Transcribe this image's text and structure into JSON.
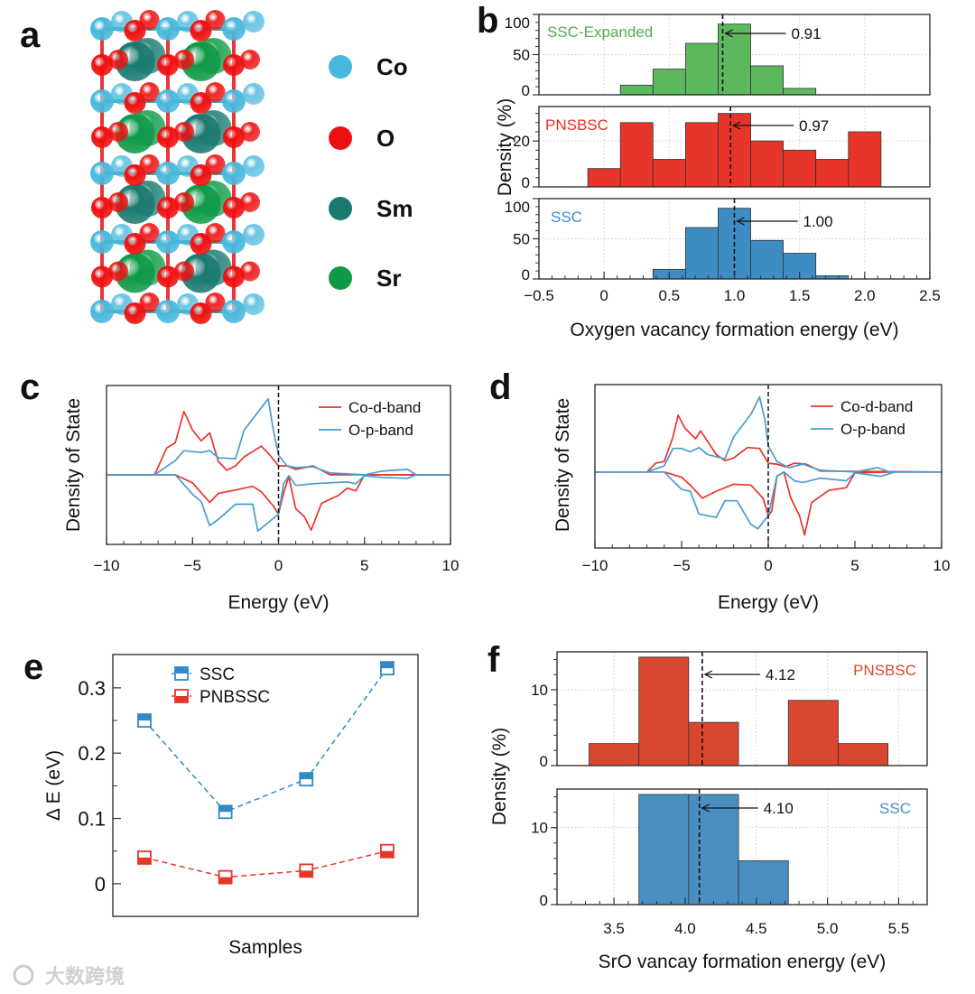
{
  "panel_labels": [
    "a",
    "b",
    "c",
    "d",
    "e",
    "f"
  ],
  "structure": {
    "legend": [
      {
        "label": "Co",
        "color": "#48b8dc"
      },
      {
        "label": "O",
        "color": "#ee1010"
      },
      {
        "label": "Sm",
        "color": "#1a7a70"
      },
      {
        "label": "Sr",
        "color": "#0f9a48"
      }
    ]
  },
  "watermark": "大数跨境",
  "chart_data": [
    {
      "panel": "b",
      "type": "bar",
      "xlabel": "Oxygen vacancy formation energy (eV)",
      "ylabel": "Density (%)",
      "xlim": [
        -0.5,
        2.5
      ],
      "xticks": [
        -0.5,
        0,
        0.5,
        1,
        1.5,
        2,
        2.5
      ],
      "xtick_labels": [
        "−0.5",
        "0",
        "0.5",
        "1.0",
        "1.5",
        "2.0",
        "2.5"
      ],
      "bin_width": 0.25,
      "grid": true,
      "series": [
        {
          "name": "SSC-Expanded",
          "color": "#5cb85c",
          "label_color": "#4caf50",
          "ylim": [
            0,
            100
          ],
          "yticks": [
            0,
            50,
            100
          ],
          "ytick_labels": [
            "0",
            "50",
            "100"
          ],
          "bin_starts": [
            0.125,
            0.375,
            0.625,
            0.875,
            1.125,
            1.375
          ],
          "values": [
            12,
            32,
            64,
            88,
            36,
            8
          ],
          "mean": 0.91,
          "mean_label": "0.91"
        },
        {
          "name": "PNSBSC",
          "color": "#e8352a",
          "label_color": "#e53124",
          "ylim": [
            0,
            35
          ],
          "yticks": [
            0,
            20
          ],
          "ytick_labels": [
            "0",
            "20"
          ],
          "bin_starts": [
            -0.125,
            0.125,
            0.375,
            0.625,
            0.875,
            1.125,
            1.375,
            1.625,
            1.875
          ],
          "values": [
            8,
            28,
            12,
            28,
            32,
            20,
            16,
            12,
            24
          ],
          "mean": 0.97,
          "mean_label": "0.97"
        },
        {
          "name": "SSC",
          "color": "#3d8cc4",
          "label_color": "#3e8dc5",
          "ylim": [
            0,
            100
          ],
          "yticks": [
            0,
            50,
            100
          ],
          "ytick_labels": [
            "0",
            "50",
            "100"
          ],
          "bin_starts": [
            0.375,
            0.625,
            0.875,
            1.125,
            1.375,
            1.625
          ],
          "values": [
            12,
            64,
            88,
            48,
            32,
            4
          ],
          "mean": 1.0,
          "mean_label": "1.00"
        }
      ]
    },
    {
      "panel": "c",
      "type": "line",
      "xlabel": "Energy (eV)",
      "ylabel": "Density of State",
      "xlim": [
        -10,
        10
      ],
      "ylim": [
        -0.78,
        1.0
      ],
      "xticks": [
        -10,
        -5,
        0,
        5,
        10
      ],
      "xtick_labels": [
        "−10",
        "−5",
        "0",
        "5",
        "10"
      ],
      "legend": "top-right",
      "fermi_level": 0,
      "series": [
        {
          "name": "Co-d-band",
          "color": "#e8352a",
          "up": [
            [
              -10,
              0
            ],
            [
              -7.2,
              0
            ],
            [
              -6.5,
              0.3
            ],
            [
              -6,
              0.36
            ],
            [
              -5.5,
              0.71
            ],
            [
              -5,
              0.5
            ],
            [
              -4.5,
              0.38
            ],
            [
              -4,
              0.47
            ],
            [
              -3.5,
              0.15
            ],
            [
              -3,
              0.05
            ],
            [
              -2.5,
              0.1
            ],
            [
              -2,
              0.2
            ],
            [
              -1,
              0.32
            ],
            [
              -0.5,
              0.22
            ],
            [
              0,
              0.1
            ],
            [
              0.5,
              0.1
            ],
            [
              1,
              0.06
            ],
            [
              1.5,
              0.08
            ],
            [
              2,
              0.1
            ],
            [
              3,
              0
            ],
            [
              10,
              0
            ]
          ],
          "down": [
            [
              -10,
              0
            ],
            [
              -6,
              0
            ],
            [
              -5,
              -0.09
            ],
            [
              -4.5,
              -0.2
            ],
            [
              -4,
              -0.31
            ],
            [
              -3.5,
              -0.21
            ],
            [
              -2.5,
              -0.17
            ],
            [
              -1.5,
              -0.13
            ],
            [
              -1,
              -0.19
            ],
            [
              -0.3,
              -0.35
            ],
            [
              0,
              -0.44
            ],
            [
              0.3,
              -0.2
            ],
            [
              0.6,
              -0.02
            ],
            [
              1,
              -0.38
            ],
            [
              1.5,
              -0.47
            ],
            [
              1.9,
              -0.62
            ],
            [
              2.5,
              -0.32
            ],
            [
              3.5,
              -0.23
            ],
            [
              4,
              -0.15
            ],
            [
              4.5,
              -0.18
            ],
            [
              5,
              0
            ],
            [
              10,
              0
            ]
          ]
        },
        {
          "name": "O-p-band",
          "color": "#4a9bd0",
          "up": [
            [
              -10,
              0
            ],
            [
              -7.2,
              0
            ],
            [
              -6,
              0.16
            ],
            [
              -5.5,
              0.27
            ],
            [
              -4.5,
              0.25
            ],
            [
              -4,
              0.27
            ],
            [
              -3.5,
              0.19
            ],
            [
              -2.5,
              0.18
            ],
            [
              -2,
              0.5
            ],
            [
              -1,
              0.75
            ],
            [
              -0.6,
              0.85
            ],
            [
              -0.3,
              0.5
            ],
            [
              0,
              0.22
            ],
            [
              0.5,
              0.1
            ],
            [
              1,
              0.08
            ],
            [
              2,
              0.09
            ],
            [
              3,
              0.02
            ],
            [
              5,
              0
            ],
            [
              6,
              0.04
            ],
            [
              7.5,
              0.06
            ],
            [
              8,
              0
            ],
            [
              10,
              0
            ]
          ],
          "down": [
            [
              -10,
              0
            ],
            [
              -6,
              0
            ],
            [
              -5,
              -0.22
            ],
            [
              -4.5,
              -0.3
            ],
            [
              -4,
              -0.57
            ],
            [
              -3.5,
              -0.5
            ],
            [
              -2.5,
              -0.33
            ],
            [
              -1.5,
              -0.33
            ],
            [
              -1.2,
              -0.63
            ],
            [
              -0.5,
              -0.52
            ],
            [
              0,
              -0.44
            ],
            [
              0.3,
              -0.1
            ],
            [
              0.6,
              -0.01
            ],
            [
              1,
              -0.12
            ],
            [
              2,
              -0.1
            ],
            [
              4,
              -0.08
            ],
            [
              4.5,
              -0.1
            ],
            [
              5,
              -0.01
            ],
            [
              6,
              -0.03
            ],
            [
              7.5,
              -0.04
            ],
            [
              8,
              0
            ],
            [
              10,
              0
            ]
          ]
        }
      ]
    },
    {
      "panel": "d",
      "type": "line",
      "xlabel": "Energy (eV)",
      "ylabel": "Density of State",
      "xlim": [
        -10,
        10
      ],
      "ylim": [
        -0.87,
        1.0
      ],
      "xticks": [
        -10,
        -5,
        0,
        5,
        10
      ],
      "xtick_labels": [
        "−10",
        "−5",
        "0",
        "5",
        "10"
      ],
      "legend": "top-right",
      "fermi_level": 0,
      "series": [
        {
          "name": "Co-d-band",
          "color": "#e8352a",
          "up": [
            [
              -10,
              0
            ],
            [
              -7,
              0
            ],
            [
              -6.5,
              0.1
            ],
            [
              -6,
              0.12
            ],
            [
              -5.5,
              0.4
            ],
            [
              -5.2,
              0.65
            ],
            [
              -4.8,
              0.5
            ],
            [
              -4.2,
              0.38
            ],
            [
              -3.9,
              0.47
            ],
            [
              -3.5,
              0.35
            ],
            [
              -3,
              0.2
            ],
            [
              -2.5,
              0.13
            ],
            [
              -2,
              0.16
            ],
            [
              -1.2,
              0.28
            ],
            [
              -0.5,
              0.27
            ],
            [
              0,
              0.1
            ],
            [
              0.5,
              0.09
            ],
            [
              1,
              0.06
            ],
            [
              1.5,
              0.1
            ],
            [
              2.2,
              0.09
            ],
            [
              3,
              0.01
            ],
            [
              10,
              0
            ]
          ],
          "down": [
            [
              -10,
              0
            ],
            [
              -6,
              0
            ],
            [
              -5,
              -0.06
            ],
            [
              -4.5,
              -0.15
            ],
            [
              -3.8,
              -0.3
            ],
            [
              -3,
              -0.22
            ],
            [
              -2,
              -0.14
            ],
            [
              -1,
              -0.15
            ],
            [
              -0.3,
              -0.3
            ],
            [
              0,
              -0.5
            ],
            [
              0.2,
              -0.45
            ],
            [
              0.5,
              -0.05
            ],
            [
              0.9,
              0
            ],
            [
              1.3,
              -0.3
            ],
            [
              1.8,
              -0.5
            ],
            [
              2.1,
              -0.72
            ],
            [
              2.5,
              -0.35
            ],
            [
              3.5,
              -0.21
            ],
            [
              4.5,
              -0.18
            ],
            [
              5,
              -0.01
            ],
            [
              7.2,
              0
            ],
            [
              10,
              0
            ]
          ]
        },
        {
          "name": "O-p-band",
          "color": "#4a9bd0",
          "up": [
            [
              -10,
              0
            ],
            [
              -7,
              0
            ],
            [
              -6,
              0.07
            ],
            [
              -5.5,
              0.27
            ],
            [
              -5,
              0.27
            ],
            [
              -4.5,
              0.23
            ],
            [
              -4,
              0.28
            ],
            [
              -3.5,
              0.2
            ],
            [
              -2.5,
              0.15
            ],
            [
              -2,
              0.4
            ],
            [
              -1,
              0.66
            ],
            [
              -0.5,
              0.86
            ],
            [
              -0.2,
              0.6
            ],
            [
              0,
              0.3
            ],
            [
              0.5,
              0.12
            ],
            [
              1.2,
              0.05
            ],
            [
              2,
              0.09
            ],
            [
              3,
              0.02
            ],
            [
              5,
              0
            ],
            [
              6.3,
              0.05
            ],
            [
              7,
              0
            ],
            [
              10,
              0
            ]
          ],
          "down": [
            [
              -10,
              0
            ],
            [
              -6,
              0
            ],
            [
              -5,
              -0.2
            ],
            [
              -4.5,
              -0.22
            ],
            [
              -4,
              -0.48
            ],
            [
              -3,
              -0.52
            ],
            [
              -2.5,
              -0.33
            ],
            [
              -1.8,
              -0.33
            ],
            [
              -1,
              -0.6
            ],
            [
              -0.6,
              -0.65
            ],
            [
              0,
              -0.5
            ],
            [
              0.5,
              -0.05
            ],
            [
              0.9,
              0
            ],
            [
              1.5,
              -0.1
            ],
            [
              2,
              -0.12
            ],
            [
              3,
              -0.07
            ],
            [
              4.5,
              -0.1
            ],
            [
              5,
              -0.01
            ],
            [
              6.5,
              -0.05
            ],
            [
              7.3,
              0
            ],
            [
              10,
              0
            ]
          ]
        }
      ]
    },
    {
      "panel": "e",
      "type": "line",
      "xlabel": "Samples",
      "ylabel": "Δ E (eV)",
      "xlim": [
        0.61,
        4.38
      ],
      "ylim": [
        -0.05,
        0.351
      ],
      "yticks": [
        0,
        0.1,
        0.2,
        0.3
      ],
      "ytick_labels": [
        "0",
        "0.1",
        "0.2",
        "0.3"
      ],
      "legend": "top-left",
      "x": [
        1,
        2,
        3,
        4
      ],
      "series": [
        {
          "name": "SSC",
          "color": "#2f8ac6",
          "values": [
            0.25,
            0.11,
            0.16,
            0.33
          ],
          "fill": "top"
        },
        {
          "name": "PNBSSC",
          "color": "#e8352a",
          "values": [
            0.04,
            0.01,
            0.02,
            0.05
          ],
          "fill": "bottom"
        }
      ]
    },
    {
      "panel": "f",
      "type": "bar",
      "xlabel": "SrO vancay formation energy (eV)",
      "ylabel": "Density (%)",
      "xlim": [
        3.1,
        5.7
      ],
      "xticks": [
        3.5,
        4.0,
        4.5,
        5.0,
        5.5
      ],
      "xtick_labels": [
        "3.5",
        "4.0",
        "4.5",
        "5.0",
        "5.5"
      ],
      "bin_width": 0.35,
      "grid": true,
      "series": [
        {
          "name": "PNSBSC",
          "color": "#d9472f",
          "label_color": "#d9472f",
          "ylim": [
            0,
            15
          ],
          "yticks": [
            0,
            10
          ],
          "ytick_labels": [
            "0",
            "10"
          ],
          "bin_starts": [
            3.325,
            3.675,
            4.025,
            4.725,
            5.075
          ],
          "values": [
            2.9,
            14.3,
            5.7,
            8.6,
            2.9
          ],
          "mean": 4.12,
          "mean_label": "4.12"
        },
        {
          "name": "SSC",
          "color": "#4a8fc2",
          "label_color": "#4a8fc2",
          "ylim": [
            0,
            15
          ],
          "yticks": [
            0,
            10
          ],
          "ytick_labels": [
            "0",
            "10"
          ],
          "bin_starts": [
            3.675,
            4.025,
            4.375
          ],
          "values": [
            14.3,
            14.3,
            5.7
          ],
          "mean": 4.1,
          "mean_label": "4.10"
        }
      ]
    }
  ]
}
